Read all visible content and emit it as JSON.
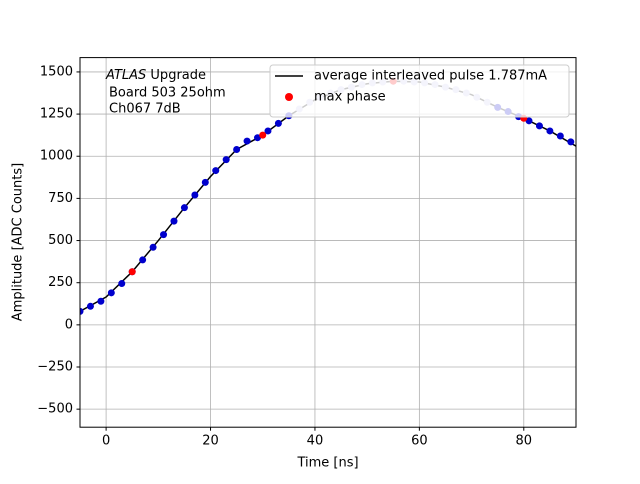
{
  "chart_data": {
    "type": "scatter",
    "annotation": {
      "emphasis": "ATLAS",
      "text": "Upgrade",
      "lines": [
        "Board 503 25ohm",
        "Ch067 7dB"
      ]
    },
    "x_label": "Time [ns]",
    "y_label": "Amplitude [ADC Counts]",
    "xlim": [
      -5,
      90
    ],
    "ylim": [
      -607,
      1585
    ],
    "xticks": [
      0,
      20,
      40,
      60,
      80
    ],
    "yticks": [
      -500,
      -250,
      0,
      250,
      500,
      750,
      1000,
      1250,
      1500
    ],
    "yticks_labels": [
      "−500",
      "−250",
      "0",
      "250",
      "500",
      "750",
      "1000",
      "1250",
      "1500"
    ],
    "grid": true,
    "legend": "upper right",
    "series": [
      {
        "name": "average interleaved pulse 1.787mA",
        "kind": "line",
        "color": "#000000",
        "x": [
          -5,
          0,
          5,
          10,
          15,
          20,
          25,
          30,
          35,
          40,
          45,
          50,
          55,
          60,
          65,
          70,
          75,
          80,
          85,
          90
        ],
        "values": [
          80,
          165,
          315,
          500,
          695,
          880,
          1040,
          1125,
          1240,
          1335,
          1395,
          1430,
          1445,
          1440,
          1410,
          1365,
          1290,
          1225,
          1150,
          1060
        ]
      },
      {
        "kind": "points",
        "color": "#0000cd",
        "x": [
          -5,
          -3,
          -1,
          1,
          3,
          5,
          7,
          9,
          11,
          13,
          15,
          17,
          19,
          21,
          23,
          25,
          27,
          29,
          31,
          33,
          35
        ],
        "values": [
          80,
          110,
          140,
          190,
          245,
          315,
          385,
          460,
          535,
          615,
          695,
          770,
          845,
          915,
          980,
          1040,
          1090,
          1110,
          1150,
          1195,
          1240
        ]
      },
      {
        "kind": "points",
        "color": "#c8c8f0",
        "x": [
          37,
          39,
          41,
          43,
          45,
          47,
          49,
          51,
          53,
          55,
          57,
          59,
          61,
          63,
          65,
          67,
          69,
          71,
          73
        ],
        "values": [
          1280,
          1320,
          1350,
          1375,
          1395,
          1410,
          1425,
          1435,
          1440,
          1445,
          1445,
          1440,
          1435,
          1425,
          1410,
          1395,
          1375,
          1350,
          1320
        ]
      },
      {
        "kind": "points",
        "color": "#0000cd",
        "x": [
          75,
          77,
          79,
          81,
          83,
          85,
          87,
          89
        ],
        "values": [
          1290,
          1265,
          1235,
          1210,
          1180,
          1150,
          1120,
          1085
        ]
      },
      {
        "name": "max phase",
        "kind": "points",
        "color": "#ff0000",
        "x": [
          5,
          30,
          55,
          80
        ],
        "values": [
          315,
          1125,
          1445,
          1225
        ]
      }
    ]
  }
}
